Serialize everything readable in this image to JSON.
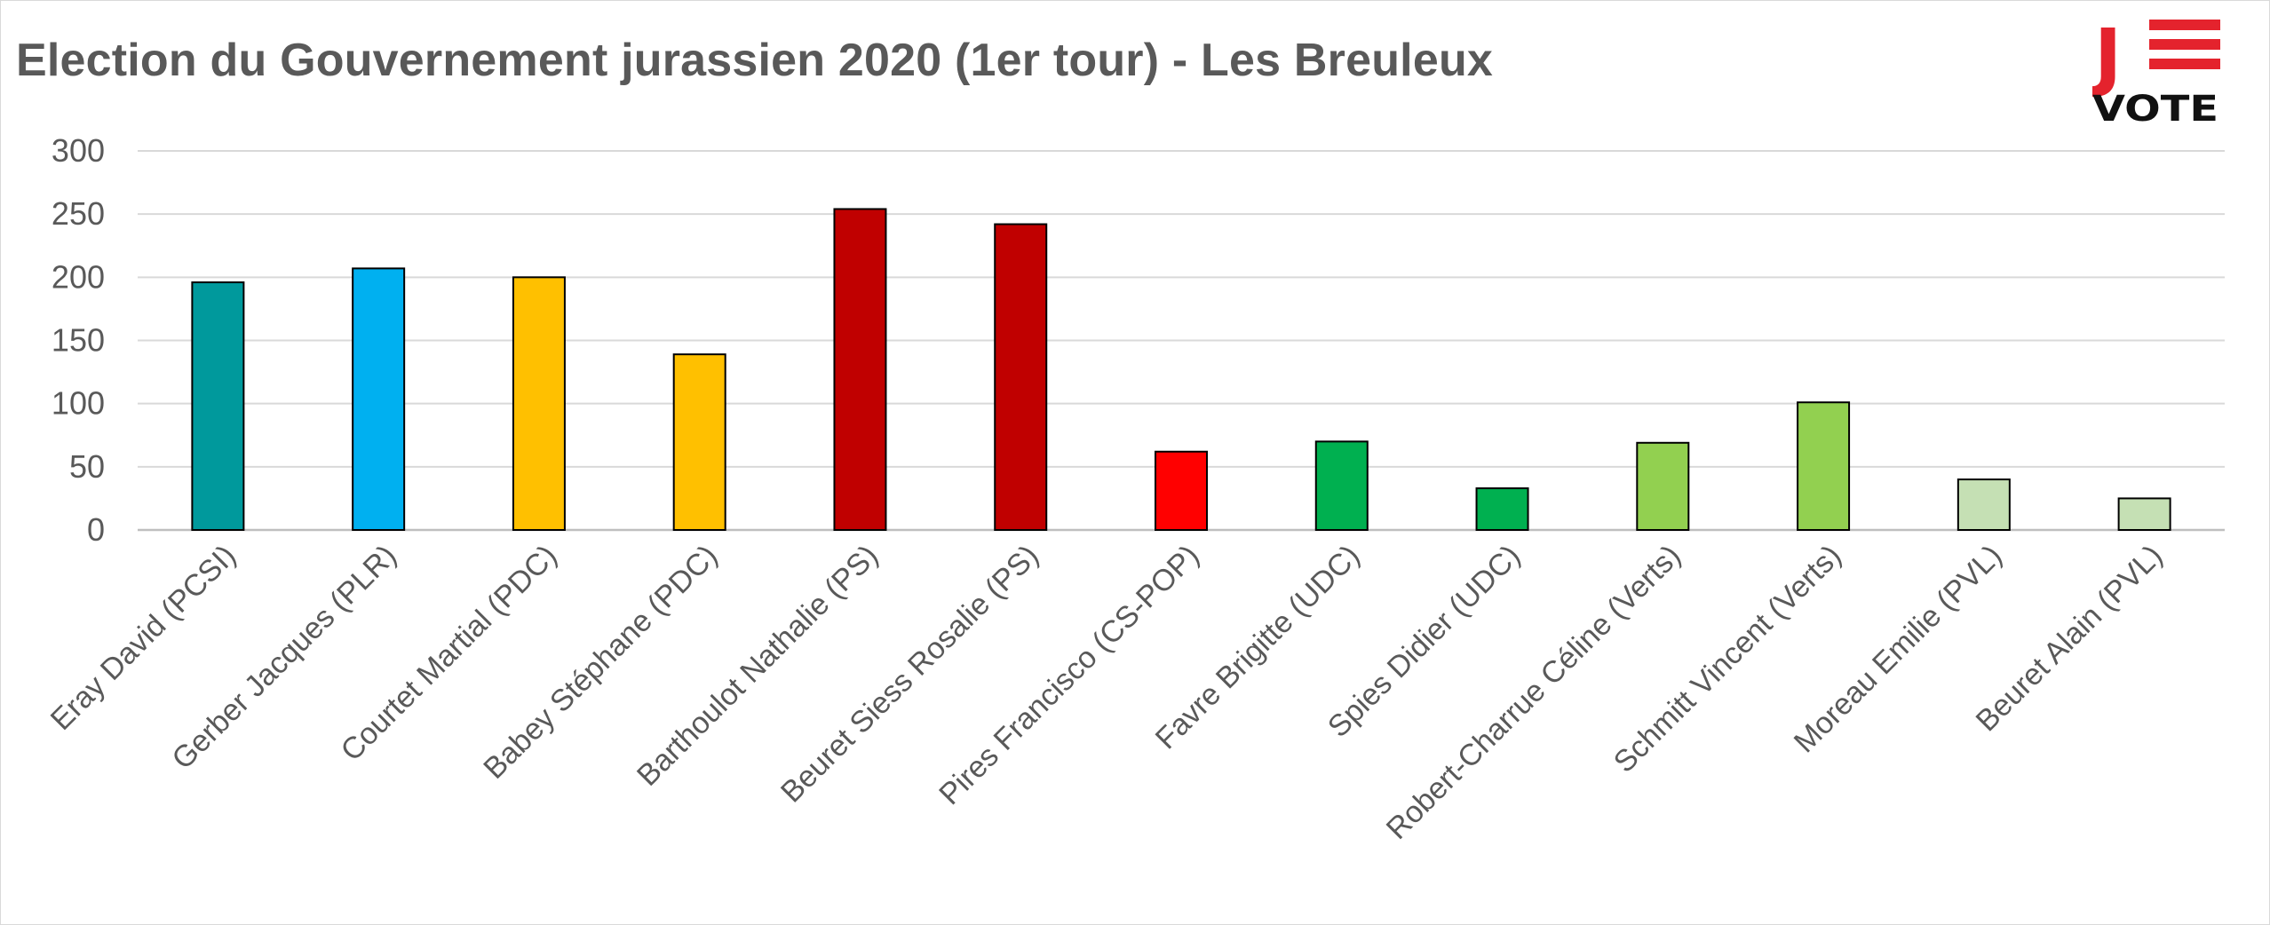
{
  "chart_data": {
    "type": "bar",
    "title": "Election du Gouvernement jurassien 2020 (1er tour) - Les Breuleux",
    "xlabel": "",
    "ylabel": "",
    "ylim": [
      0,
      300
    ],
    "yticks": [
      0,
      50,
      100,
      150,
      200,
      250,
      300
    ],
    "grid": true,
    "categories": [
      "Eray David (PCSI)",
      "Gerber Jacques (PLR)",
      "Courtet Martial (PDC)",
      "Babey Stéphane (PDC)",
      "Barthoulot Nathalie (PS)",
      "Beuret Siess Rosalie (PS)",
      "Pires Francisco (CS-POP)",
      "Favre Brigitte (UDC)",
      "Spies Didier (UDC)",
      "Robert-Charrue Céline (Verts)",
      "Schmitt Vincent (Verts)",
      "Moreau Emilie (PVL)",
      "Beuret Alain (PVL)"
    ],
    "values": [
      196,
      207,
      200,
      139,
      254,
      242,
      62,
      70,
      33,
      69,
      101,
      40,
      25
    ],
    "colors": [
      "#00999c",
      "#00b0f0",
      "#ffc000",
      "#ffc000",
      "#c00000",
      "#c00000",
      "#ff0000",
      "#00b050",
      "#00b050",
      "#92d050",
      "#92d050",
      "#c5e0b4",
      "#c5e0b4"
    ]
  },
  "logo": {
    "mark": "J",
    "text": "VOTE",
    "accent_color": "#e4232d"
  }
}
